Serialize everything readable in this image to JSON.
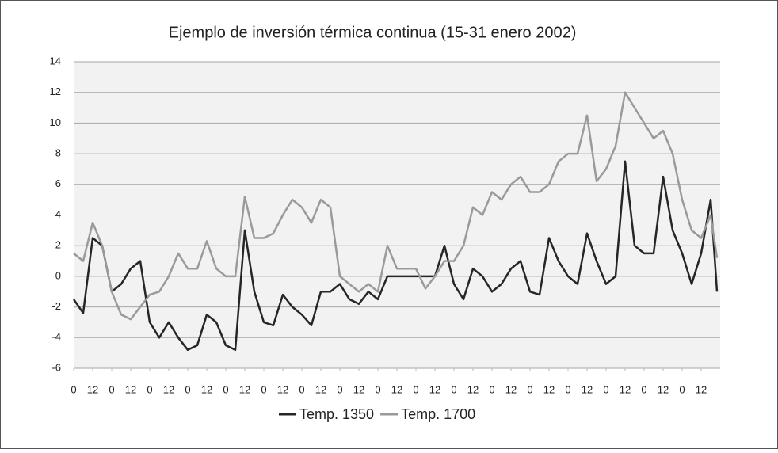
{
  "chart_data": {
    "type": "line",
    "title": "Ejemplo de inversión térmica continua (15-31 enero 2002)",
    "x": [
      0,
      6,
      12,
      18,
      24,
      30,
      36,
      42,
      48,
      54,
      60,
      66,
      72,
      78,
      84,
      90,
      96,
      102,
      108,
      114,
      120,
      126,
      132,
      138,
      144,
      150,
      156,
      162,
      168,
      174,
      180,
      186,
      192,
      198,
      204,
      210,
      216,
      222,
      228,
      234,
      240,
      246,
      252,
      258,
      264,
      270,
      276,
      282,
      288,
      294,
      300,
      306,
      312,
      318,
      324,
      330,
      336,
      342,
      348,
      354,
      360,
      366,
      372,
      378,
      384,
      390,
      396,
      402,
      406
    ],
    "series": [
      {
        "name": "Temp. 1350",
        "color": "#262626",
        "values": [
          -1.5,
          -2.4,
          2.5,
          2,
          -1,
          -0.5,
          0.5,
          1,
          -3,
          -4,
          -3,
          -4,
          -4.8,
          -4.5,
          -2.5,
          -3,
          -4.5,
          -4.8,
          3,
          -1,
          -3,
          -3.2,
          -1.2,
          -2,
          -2.5,
          -3.2,
          -1,
          -1,
          -0.5,
          -1.5,
          -1.8,
          -1,
          -1.5,
          0,
          0,
          0,
          0,
          0,
          0,
          2,
          -0.5,
          -1.5,
          0.5,
          0,
          -1,
          -0.5,
          0.5,
          1,
          -1,
          -1.2,
          2.5,
          1,
          0,
          -0.5,
          2.8,
          1,
          -0.5,
          0,
          7.5,
          2,
          1.5,
          1.5,
          6.5,
          3,
          1.5,
          -0.5,
          1.5,
          5,
          -1
        ]
      },
      {
        "name": "Temp. 1700",
        "color": "#9a9a9a",
        "values": [
          1.5,
          1,
          3.5,
          2,
          -1,
          -2.5,
          -2.8,
          -2,
          -1.2,
          -1,
          0,
          1.5,
          0.5,
          0.5,
          2.3,
          0.5,
          0,
          0,
          5.2,
          2.5,
          2.5,
          2.8,
          4,
          5,
          4.5,
          3.5,
          5,
          4.5,
          0,
          -0.5,
          -1,
          -0.5,
          -1,
          2,
          0.5,
          0.5,
          0.5,
          -0.8,
          0,
          1,
          1,
          2,
          4.5,
          4,
          5.5,
          5,
          6,
          6.5,
          5.5,
          5.5,
          6,
          7.5,
          8,
          8,
          10.5,
          6.2,
          7,
          8.5,
          12,
          11,
          10,
          9,
          9.5,
          8,
          5,
          3,
          2.5,
          4,
          1.2
        ]
      }
    ],
    "xlim": [
      0,
      408
    ],
    "xticks": [
      0,
      12,
      {
        "value": 24,
        "label": "0"
      },
      {
        "value": 36,
        "label": "12"
      },
      {
        "value": 48,
        "label": "0"
      },
      {
        "value": 60,
        "label": "12"
      },
      {
        "value": 72,
        "label": "0"
      },
      {
        "value": 84,
        "label": "12"
      },
      {
        "value": 96,
        "label": "0"
      },
      {
        "value": 108,
        "label": "12"
      },
      {
        "value": 120,
        "label": "0"
      },
      {
        "value": 132,
        "label": "12"
      },
      {
        "value": 144,
        "label": "0"
      },
      {
        "value": 156,
        "label": "12"
      },
      {
        "value": 168,
        "label": "0"
      },
      {
        "value": 180,
        "label": "12"
      },
      {
        "value": 192,
        "label": "0"
      },
      {
        "value": 204,
        "label": "12"
      },
      {
        "value": 216,
        "label": "0"
      },
      {
        "value": 228,
        "label": "12"
      },
      {
        "value": 240,
        "label": "0"
      },
      {
        "value": 252,
        "label": "12"
      },
      {
        "value": 264,
        "label": "0"
      },
      {
        "value": 276,
        "label": "12"
      },
      {
        "value": 288,
        "label": "0"
      },
      {
        "value": 300,
        "label": "12"
      },
      {
        "value": 312,
        "label": "0"
      },
      {
        "value": 324,
        "label": "12"
      },
      {
        "value": 336,
        "label": "0"
      },
      {
        "value": 348,
        "label": "12"
      },
      {
        "value": 360,
        "label": "0"
      },
      {
        "value": 372,
        "label": "12"
      },
      {
        "value": 384,
        "label": "0"
      },
      {
        "value": 396,
        "label": "12"
      }
    ],
    "ylim": [
      -6,
      14
    ],
    "yticks": [
      -6,
      -4,
      -2,
      0,
      2,
      4,
      6,
      8,
      10,
      12,
      14
    ],
    "grid": true,
    "legend": "bottom"
  }
}
